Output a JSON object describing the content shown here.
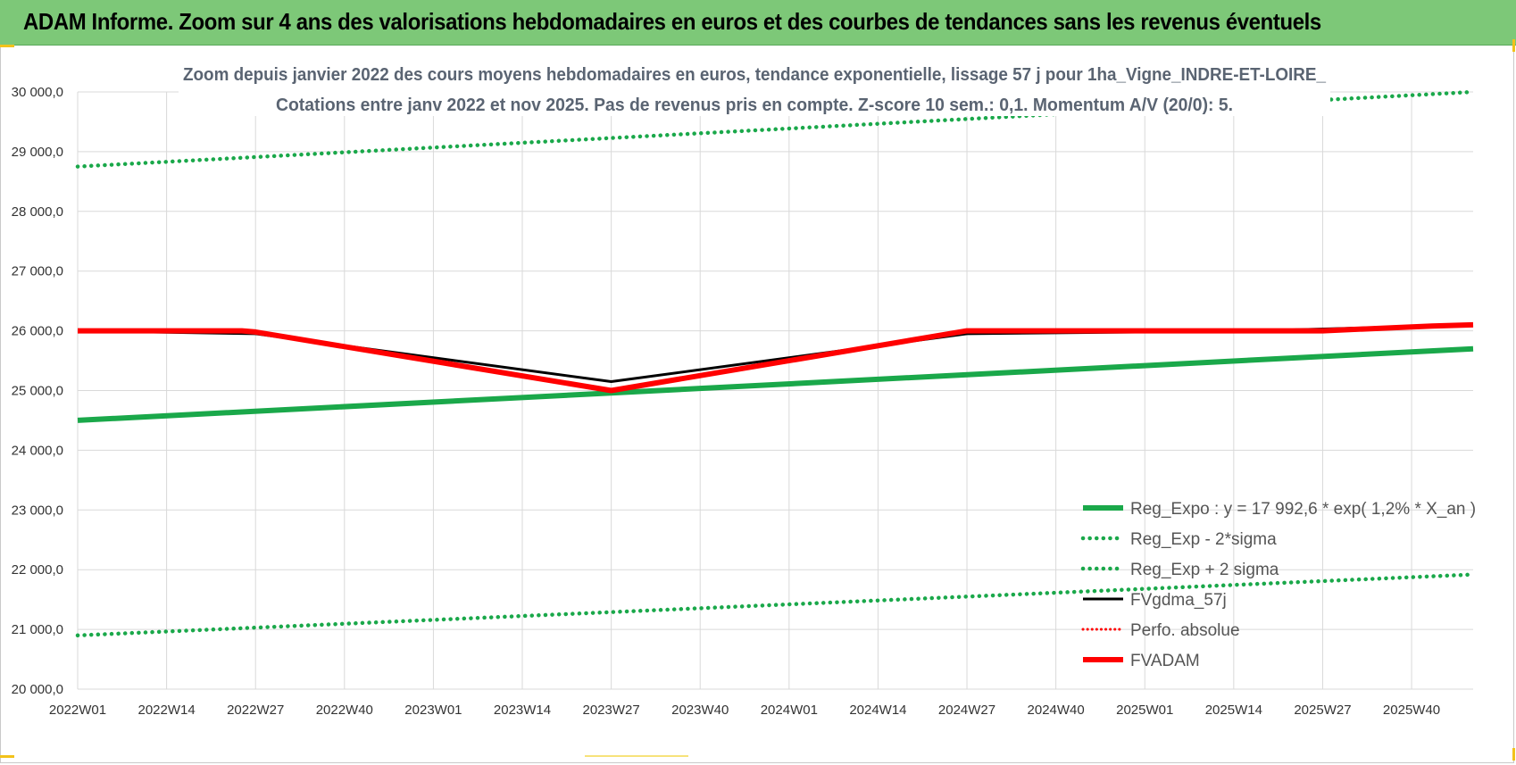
{
  "banner": {
    "title": "ADAM Informe. Zoom sur 4 ans des valorisations hebdomadaires en euros et des courbes de tendances sans les revenus éventuels"
  },
  "colors": {
    "banner_bg": "#7dc878",
    "reg_expo": "#1aa84a",
    "band": "#1aa84a",
    "fvgdma": "#000000",
    "perfo": "#ff0000",
    "fvadam": "#ff0000",
    "grid": "#d9d9d9"
  },
  "chart_data": {
    "type": "line",
    "title_line1": "Zoom depuis janvier 2022 des cours moyens hebdomadaires en euros, tendance exponentielle, lissage 57 j pour 1ha_Vigne_INDRE-ET-LOIRE_",
    "title_line2": "Cotations entre janv 2022 et nov 2025. Pas de revenus pris en compte. Z-score 10 sem.: 0,1. Momentum A/V (20/0): 5.",
    "x_tick_labels": [
      "2022W01",
      "2022W14",
      "2022W27",
      "2022W40",
      "2023W01",
      "2023W14",
      "2023W27",
      "2023W40",
      "2024W01",
      "2024W14",
      "2024W27",
      "2024W40",
      "2025W01",
      "2025W14",
      "2025W27",
      "2025W40"
    ],
    "x_range_weeks": [
      0,
      204
    ],
    "ylim": [
      20000,
      30000
    ],
    "y_ticks": [
      20000,
      21000,
      22000,
      23000,
      24000,
      25000,
      26000,
      27000,
      28000,
      29000,
      30000
    ],
    "y_tick_labels": [
      "20 000,0",
      "21 000,0",
      "22 000,0",
      "23 000,0",
      "24 000,0",
      "25 000,0",
      "26 000,0",
      "27 000,0",
      "28 000,0",
      "29 000,0",
      "30 000,0"
    ],
    "grid": true,
    "legend_position": "bottom-right",
    "series": [
      {
        "name": "Reg_Expo : y = 17 992,6 * exp( 1,2% *  X_an )",
        "style": "solid-green",
        "x": [
          0,
          204
        ],
        "y": [
          24500,
          25700
        ]
      },
      {
        "name": "Reg_Exp - 2*sigma",
        "style": "dotted-green",
        "x": [
          0,
          204
        ],
        "y": [
          20900,
          21920
        ]
      },
      {
        "name": "Reg_Exp + 2 sigma",
        "style": "dotted-green",
        "x": [
          0,
          204
        ],
        "y": [
          28750,
          30000
        ]
      },
      {
        "name": "FVgdma_57j",
        "style": "solid-black",
        "x": [
          0,
          26,
          78,
          130,
          172,
          204
        ],
        "y": [
          26000,
          25950,
          25150,
          25950,
          26000,
          26100
        ]
      },
      {
        "name": "Perfo. absolue",
        "style": "dotted-red",
        "x": [],
        "y": []
      },
      {
        "name": "FVADAM",
        "style": "thick-red",
        "x": [
          0,
          24,
          26,
          78,
          130,
          156,
          182,
          198,
          204
        ],
        "y": [
          26000,
          26000,
          25980,
          25000,
          26000,
          26000,
          26000,
          26080,
          26100
        ]
      }
    ]
  }
}
